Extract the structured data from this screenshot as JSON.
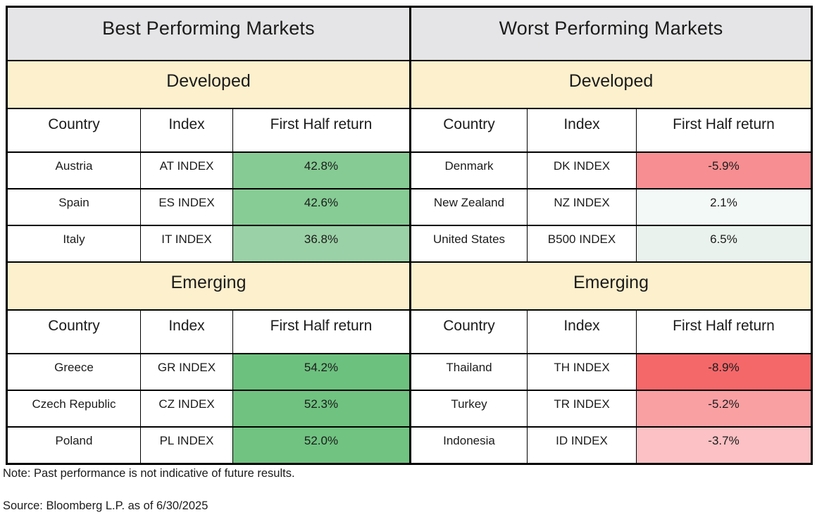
{
  "columns": {
    "country": "Country",
    "index": "Index",
    "return": "First Half return"
  },
  "colors": {
    "header_bg": "#e5e4e6",
    "section_bg": "#fdf0cd",
    "border": "#000000",
    "green_strong": "#6dc17e",
    "green_medium": "#85cb93",
    "green_light": "#9bd1a6",
    "green_faint": "#e9f2ec",
    "neutral_faint": "#f3f9f7",
    "red_strong": "#f5686a",
    "red_medium": "#f78e91",
    "red_light": "#f9a0a3",
    "red_faint": "#fbc1c4"
  },
  "best": {
    "title": "Best Performing Markets",
    "developed": {
      "label": "Developed",
      "rows": [
        {
          "country": "Austria",
          "index": "AT INDEX",
          "return": "42.8%",
          "bg": "#85cb93"
        },
        {
          "country": "Spain",
          "index": "ES INDEX",
          "return": "42.6%",
          "bg": "#86cc94"
        },
        {
          "country": "Italy",
          "index": "IT INDEX",
          "return": "36.8%",
          "bg": "#9bd1a6"
        }
      ]
    },
    "emerging": {
      "label": "Emerging",
      "rows": [
        {
          "country": "Greece",
          "index": "GR INDEX",
          "return": "54.2%",
          "bg": "#6dc17e"
        },
        {
          "country": "Czech Republic",
          "index": "CZ INDEX",
          "return": "52.3%",
          "bg": "#6fc280"
        },
        {
          "country": "Poland",
          "index": "PL INDEX",
          "return": "52.0%",
          "bg": "#70c381"
        }
      ]
    }
  },
  "worst": {
    "title": "Worst Performing Markets",
    "developed": {
      "label": "Developed",
      "rows": [
        {
          "country": "Denmark",
          "index": "DK INDEX",
          "return": "-5.9%",
          "bg": "#f78e91"
        },
        {
          "country": "New Zealand",
          "index": "NZ INDEX",
          "return": "2.1%",
          "bg": "#f3f9f7"
        },
        {
          "country": "United States",
          "index": "B500 INDEX",
          "return": "6.5%",
          "bg": "#e9f2ec"
        }
      ]
    },
    "emerging": {
      "label": "Emerging",
      "rows": [
        {
          "country": "Thailand",
          "index": "TH INDEX",
          "return": "-8.9%",
          "bg": "#f5686a"
        },
        {
          "country": "Turkey",
          "index": "TR INDEX",
          "return": "-5.2%",
          "bg": "#f9a0a3"
        },
        {
          "country": "Indonesia",
          "index": "ID INDEX",
          "return": "-3.7%",
          "bg": "#fbc1c4"
        }
      ]
    }
  },
  "footnotes": {
    "note": "Note: Past performance is not indicative of future results.",
    "source": "Source: Bloomberg L.P. as of 6/30/2025"
  },
  "chart_data": {
    "type": "table",
    "title": "Best vs Worst Performing Markets — First Half return (as of 6/30/2025)",
    "tables": [
      {
        "name": "Best Performing Markets",
        "sections": [
          {
            "name": "Developed",
            "columns": [
              "Country",
              "Index",
              "First Half return"
            ],
            "rows": [
              [
                "Austria",
                "AT INDEX",
                42.8
              ],
              [
                "Spain",
                "ES INDEX",
                42.6
              ],
              [
                "Italy",
                "IT INDEX",
                36.8
              ]
            ]
          },
          {
            "name": "Emerging",
            "columns": [
              "Country",
              "Index",
              "First Half return"
            ],
            "rows": [
              [
                "Greece",
                "GR INDEX",
                54.2
              ],
              [
                "Czech Republic",
                "CZ INDEX",
                52.3
              ],
              [
                "Poland",
                "PL INDEX",
                52.0
              ]
            ]
          }
        ]
      },
      {
        "name": "Worst Performing Markets",
        "sections": [
          {
            "name": "Developed",
            "columns": [
              "Country",
              "Index",
              "First Half return"
            ],
            "rows": [
              [
                "Denmark",
                "DK INDEX",
                -5.9
              ],
              [
                "New Zealand",
                "NZ INDEX",
                2.1
              ],
              [
                "United States",
                "B500 INDEX",
                6.5
              ]
            ]
          },
          {
            "name": "Emerging",
            "columns": [
              "Country",
              "Index",
              "First Half return"
            ],
            "rows": [
              [
                "Thailand",
                "TH INDEX",
                -8.9
              ],
              [
                "Turkey",
                "TR INDEX",
                -5.2
              ],
              [
                "Indonesia",
                "ID INDEX",
                -3.7
              ]
            ]
          }
        ]
      }
    ],
    "value_unit": "%",
    "source": "Bloomberg L.P."
  }
}
